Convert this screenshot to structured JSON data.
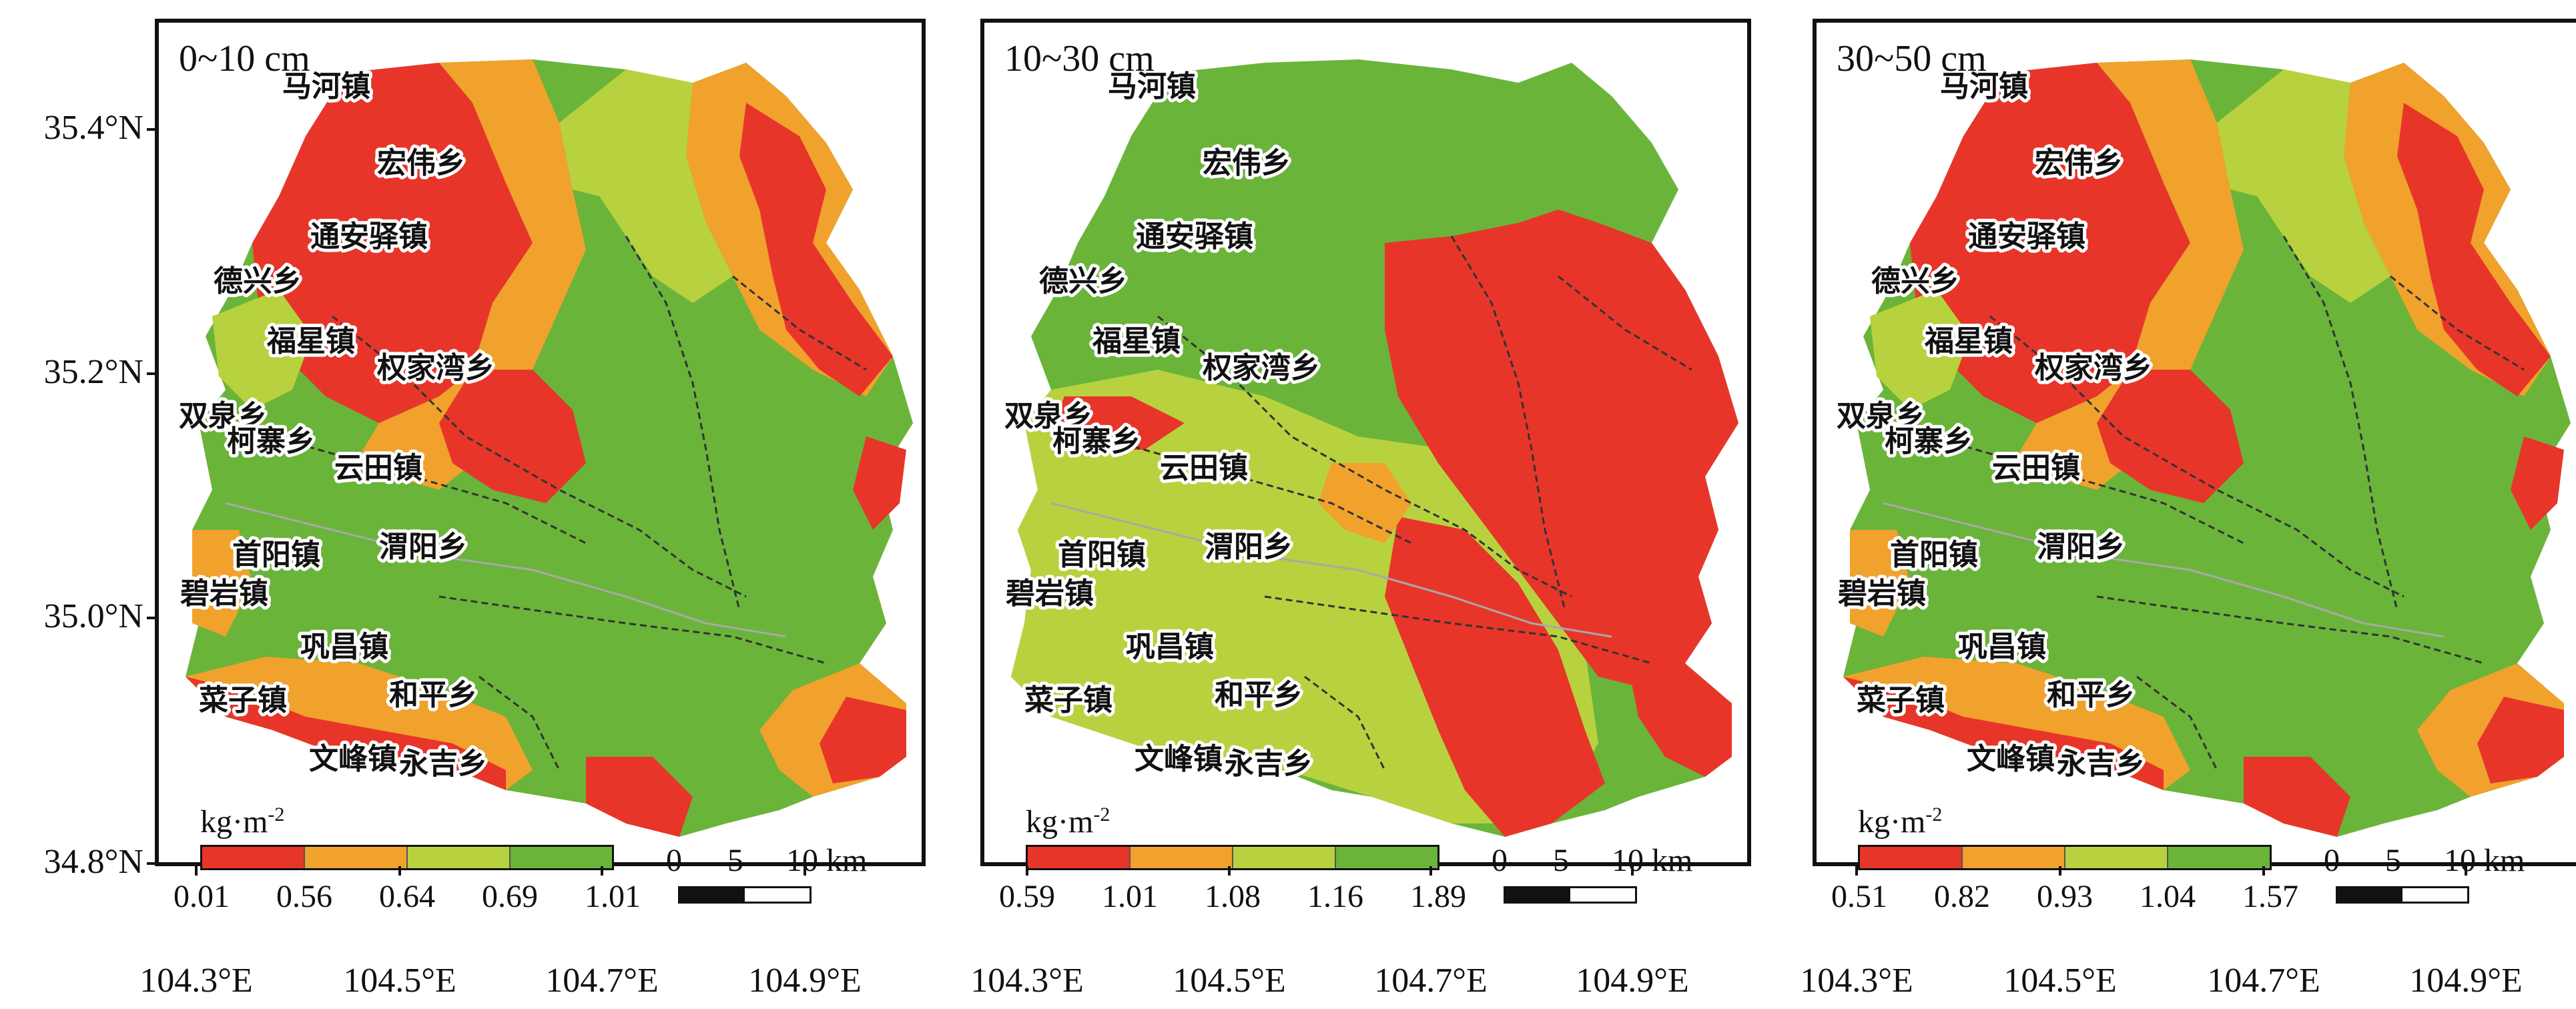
{
  "y_axis_labels": [
    "35.4°N",
    "35.2°N",
    "35.0°N",
    "34.8°N"
  ],
  "x_axis_labels": [
    "104.3°E",
    "104.5°E",
    "104.7°E",
    "104.9°E"
  ],
  "towns": [
    "马河镇",
    "宏伟乡",
    "通安驿镇",
    "德兴乡",
    "福星镇",
    "权家湾乡",
    "双泉乡",
    "柯寨乡",
    "云田镇",
    "首阳镇",
    "渭阳乡",
    "碧岩镇",
    "巩昌镇",
    "和平乡",
    "菜子镇",
    "文峰镇",
    "永吉乡"
  ],
  "colors": {
    "class1": "#e8352a",
    "class2": "#f0a22c",
    "class3": "#b7d23e",
    "class4": "#6ab43a",
    "boundary": "#333333",
    "river": "#a9a9a9"
  },
  "panels": [
    {
      "depth": "0~10 cm",
      "unit": "kg·m",
      "unit_sup": "-2",
      "legend_ticks": [
        "0.01",
        "0.56",
        "0.64",
        "0.69",
        "1.01"
      ],
      "scale": {
        "zero": "0",
        "five": "5",
        "ten": "10 km"
      }
    },
    {
      "depth": "10~30 cm",
      "unit": "kg·m",
      "unit_sup": "-2",
      "legend_ticks": [
        "0.59",
        "1.01",
        "1.08",
        "1.16",
        "1.89"
      ],
      "scale": {
        "zero": "0",
        "five": "5",
        "ten": "10 km"
      }
    },
    {
      "depth": "30~50 cm",
      "unit": "kg·m",
      "unit_sup": "-2",
      "legend_ticks": [
        "0.51",
        "0.82",
        "0.93",
        "1.04",
        "1.57"
      ],
      "scale": {
        "zero": "0",
        "five": "5",
        "ten": "10 km"
      }
    }
  ]
}
